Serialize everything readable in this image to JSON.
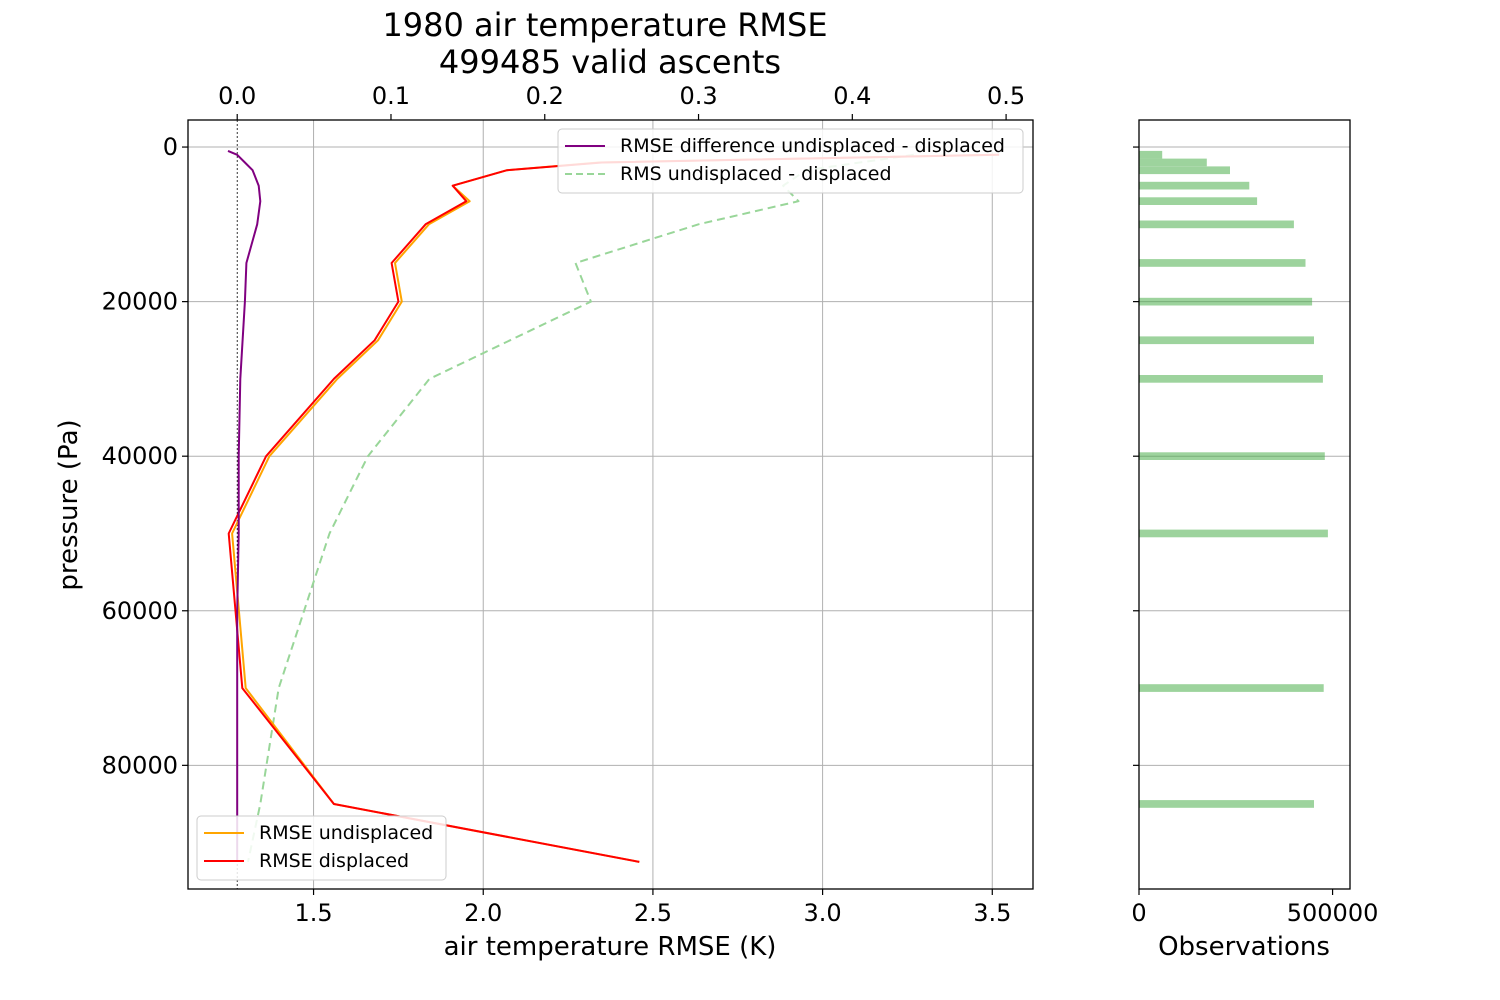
{
  "chart_data": [
    {
      "type": "line",
      "title": "1980 air temperature RMSE",
      "subtitle": "499485 valid ascents",
      "xlabel": "air temperature RMSE (K)",
      "ylabel": "pressure (Pa)",
      "x_bottom_range": [
        1.13,
        3.62
      ],
      "x_bottom_ticks": [
        "1.5",
        "2.0",
        "2.5",
        "3.0",
        "3.5"
      ],
      "x_top_range": [
        -0.032,
        0.5175
      ],
      "x_top_ticks": [
        "0.0",
        "0.1",
        "0.2",
        "0.3",
        "0.4",
        "0.5"
      ],
      "y_range": [
        -3500,
        96000
      ],
      "y_inverted": true,
      "y_ticks": [
        "0",
        "20000",
        "40000",
        "60000",
        "80000"
      ],
      "grid": true,
      "zero_line_top_axis": true,
      "legend_top": {
        "placement": "upper-right",
        "entries": [
          {
            "label": "RMSE difference undisplaced - displaced",
            "color": "#800080",
            "style": "solid"
          },
          {
            "label": "RMS undisplaced - displaced",
            "color": "#99d699",
            "style": "dashed"
          }
        ]
      },
      "legend_bottom": {
        "placement": "lower-left",
        "entries": [
          {
            "label": "RMSE undisplaced",
            "color": "#ffa500",
            "style": "solid"
          },
          {
            "label": "RMSE displaced",
            "color": "#ff0000",
            "style": "solid"
          }
        ]
      },
      "series": [
        {
          "name": "RMSE undisplaced",
          "axis": "bottom",
          "color": "#ffa500",
          "style": "solid",
          "pressure": [
            1000,
            2000,
            3000,
            5000,
            7000,
            10000,
            15000,
            20000,
            25000,
            30000,
            40000,
            50000,
            70000,
            85000,
            92500
          ],
          "x": [
            3.51,
            2.34,
            2.07,
            1.91,
            1.96,
            1.84,
            1.74,
            1.76,
            1.69,
            1.57,
            1.37,
            1.26,
            1.3,
            1.56,
            2.46
          ]
        },
        {
          "name": "RMSE displaced",
          "axis": "bottom",
          "color": "#ff0000",
          "style": "solid",
          "pressure": [
            1000,
            2000,
            3000,
            5000,
            7000,
            10000,
            15000,
            20000,
            25000,
            30000,
            40000,
            50000,
            70000,
            85000,
            92500
          ],
          "x": [
            3.52,
            2.35,
            2.07,
            1.91,
            1.95,
            1.83,
            1.73,
            1.75,
            1.68,
            1.56,
            1.36,
            1.25,
            1.29,
            1.56,
            2.46
          ]
        },
        {
          "name": "RMSE difference undisplaced - displaced",
          "axis": "top",
          "color": "#800080",
          "style": "solid",
          "pressure": [
            500,
            1000,
            2000,
            3000,
            5000,
            7000,
            10000,
            15000,
            20000,
            30000,
            40000,
            50000,
            60000,
            70000,
            85000,
            92500
          ],
          "x": [
            -0.006,
            0.0,
            0.005,
            0.01,
            0.014,
            0.015,
            0.013,
            0.006,
            0.005,
            0.002,
            0.001,
            0.001,
            0.0,
            0.0,
            0.0,
            0.0
          ]
        },
        {
          "name": "RMS undisplaced - displaced",
          "axis": "top",
          "color": "#99d699",
          "style": "dashed",
          "pressure": [
            1000,
            3000,
            5000,
            7000,
            10000,
            15000,
            20000,
            30000,
            40000,
            50000,
            70000,
            85000,
            92500
          ],
          "x": [
            0.44,
            0.37,
            0.355,
            0.365,
            0.3,
            0.22,
            0.23,
            0.125,
            0.085,
            0.06,
            0.027,
            0.015,
            0.007
          ]
        }
      ]
    },
    {
      "type": "bar",
      "orientation": "horizontal",
      "xlabel": "Observations",
      "x_range": [
        0,
        545000
      ],
      "x_ticks": [
        "0",
        "500000"
      ],
      "y_range": [
        -3500,
        96000
      ],
      "y_inverted": true,
      "grid": true,
      "series": [
        {
          "color": "#99cc99",
          "bars": [
            {
              "pressure": 1000,
              "value": 60000
            },
            {
              "pressure": 2000,
              "value": 175000
            },
            {
              "pressure": 3000,
              "value": 235000
            },
            {
              "pressure": 5000,
              "value": 285000
            },
            {
              "pressure": 7000,
              "value": 305000
            },
            {
              "pressure": 10000,
              "value": 400000
            },
            {
              "pressure": 15000,
              "value": 430000
            },
            {
              "pressure": 20000,
              "value": 447000
            },
            {
              "pressure": 25000,
              "value": 452000
            },
            {
              "pressure": 30000,
              "value": 475000
            },
            {
              "pressure": 40000,
              "value": 480000
            },
            {
              "pressure": 50000,
              "value": 488000
            },
            {
              "pressure": 70000,
              "value": 477000
            },
            {
              "pressure": 85000,
              "value": 452000
            }
          ]
        }
      ]
    }
  ]
}
